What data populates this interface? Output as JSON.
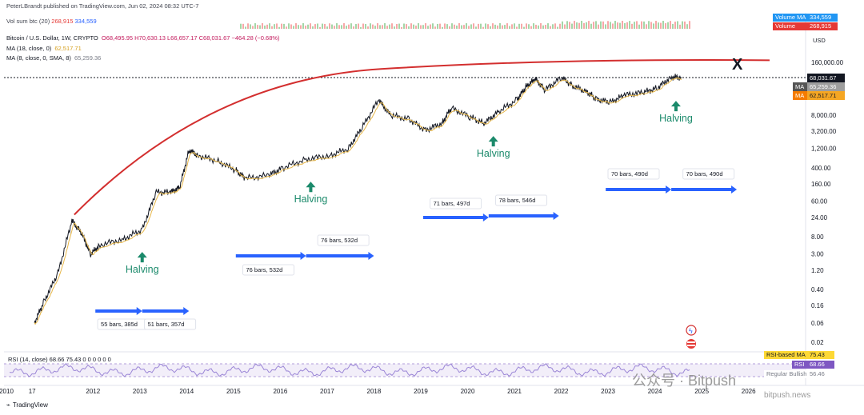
{
  "header": {
    "publisher": "PeterLBrandt published on TradingView.com, Jun 02, 2024 08:32 UTC-7"
  },
  "volume_legend": {
    "label": "Vol sum btc (20)",
    "value1": "268,915",
    "value2": "334,559"
  },
  "price_legend": {
    "symbol": "Bitcoin / U.S. Dollar, 1W, CRYPTO",
    "ohlc": "O68,495.95 H70,630.13 L66,657.17 C68,031.67 −464.28 (−0.68%)",
    "ma18_label": "MA (18, close, 0)",
    "ma18_value": "62,517.71",
    "ma8_label": "MA (8, close, 0, SMA, 8)",
    "ma8_value": "65,259.36"
  },
  "right_badges": {
    "volume_ma": "Volume MA",
    "volume_ma_value": "334,559",
    "volume": "Volume",
    "volume_value": "268,915",
    "currency": "USD",
    "price_last": "68,031.67",
    "ma_label": "MA",
    "ma8_value": "65,259.36",
    "ma18_value": "62,517.71",
    "rsi_ma_label": "RSI-based MA",
    "rsi_ma_value": "75.43",
    "rsi_label": "RSI",
    "rsi_value": "68.66",
    "rsi_bullish": "Regular Bullish",
    "rsi_bullish_value": "56.46"
  },
  "rsi_legend": "RSI (14, close) 68.66 75.43 0 0 0 0 0 0",
  "footer": {
    "brand": "TradingView"
  },
  "watermarks": {
    "wechat": "公众号 · Bitpush",
    "bitpush": "bitpush.news"
  },
  "colors": {
    "price": "#131722",
    "ma18": "#e6b74a",
    "curve": "#d32f2f",
    "arrow": "#2962ff",
    "halving": "#1b8a6b",
    "rsi": "#9b86d6"
  },
  "chart_data": {
    "type": "line",
    "scale": "log",
    "y_axis_ticks": [
      "160,000.00",
      "68,031.67",
      "8,000.00",
      "3,200.00",
      "1,200.00",
      "400.00",
      "160.00",
      "60.00",
      "24.00",
      "8.00",
      "3.00",
      "1.20",
      "0.40",
      "0.16",
      "0.06",
      "0.02"
    ],
    "x_axis_ticks": [
      "2010",
      "17",
      "2012",
      "2013",
      "2014",
      "2015",
      "2016",
      "2017",
      "2018",
      "2019",
      "2020",
      "2021",
      "2022",
      "2023",
      "2024",
      "2025",
      "2026"
    ],
    "last_close": 68031.67,
    "series": [
      {
        "name": "Bitcoin / U.S. Dollar",
        "points": [
          [
            "2010.6",
            0.06
          ],
          [
            "2010.8",
            0.2
          ],
          [
            "2011.1",
            1.0
          ],
          [
            "2011.4",
            20
          ],
          [
            "2011.6",
            10
          ],
          [
            "2011.8",
            3
          ],
          [
            "2012.0",
            5
          ],
          [
            "2012.5",
            7
          ],
          [
            "2012.9",
            12
          ],
          [
            "2013.2",
            100
          ],
          [
            "2013.5",
            100
          ],
          [
            "2013.7",
            130
          ],
          [
            "2013.9",
            1100
          ],
          [
            "2014.1",
            800
          ],
          [
            "2014.5",
            600
          ],
          [
            "2014.9",
            350
          ],
          [
            "2015.1",
            220
          ],
          [
            "2015.6",
            260
          ],
          [
            "2015.9",
            400
          ],
          [
            "2016.4",
            650
          ],
          [
            "2016.9",
            800
          ],
          [
            "2017.3",
            1200
          ],
          [
            "2017.6",
            4000
          ],
          [
            "2017.95",
            19000
          ],
          [
            "2018.2",
            8000
          ],
          [
            "2018.6",
            6300
          ],
          [
            "2018.95",
            3400
          ],
          [
            "2019.3",
            5000
          ],
          [
            "2019.5",
            12000
          ],
          [
            "2019.9",
            7200
          ],
          [
            "2020.2",
            5000
          ],
          [
            "2020.5",
            9500
          ],
          [
            "2020.9",
            19000
          ],
          [
            "2021.1",
            40000
          ],
          [
            "2021.3",
            63000
          ],
          [
            "2021.5",
            33000
          ],
          [
            "2021.85",
            68000
          ],
          [
            "2022.1",
            42000
          ],
          [
            "2022.4",
            30000
          ],
          [
            "2022.6",
            20000
          ],
          [
            "2022.9",
            16500
          ],
          [
            "2023.2",
            25000
          ],
          [
            "2023.6",
            29000
          ],
          [
            "2023.9",
            37000
          ],
          [
            "2024.2",
            70000
          ],
          [
            "2024.42",
            68031
          ]
        ]
      }
    ],
    "annotations": [
      {
        "text": "Halving",
        "x": "2012.9",
        "y": 12
      },
      {
        "text": "Halving",
        "x": "2016.5",
        "y": 650
      },
      {
        "text": "Halving",
        "x": "2020.4",
        "y": 8700
      },
      {
        "text": "Halving",
        "x": "2024.3",
        "y": 64000
      },
      {
        "text": "55 bars, 385d",
        "x": "2012.3"
      },
      {
        "text": "51 bars, 357d",
        "x": "2013.4"
      },
      {
        "text": "76 bars, 532d",
        "x": "2015.7"
      },
      {
        "text": "76 bars, 532d",
        "x": "2017.2"
      },
      {
        "text": "71 bars, 497d",
        "x": "2019.6"
      },
      {
        "text": "78 bars, 546d",
        "x": "2020.9"
      },
      {
        "text": "70 bars, 490d",
        "x": "2022.9"
      },
      {
        "text": "70 bars, 490d",
        "x": "2024.2"
      },
      {
        "text": "X",
        "x": "2025.6",
        "y": 160000
      }
    ],
    "rsi_scale": [
      0,
      100
    ],
    "grid": false,
    "legend": "top-left"
  }
}
